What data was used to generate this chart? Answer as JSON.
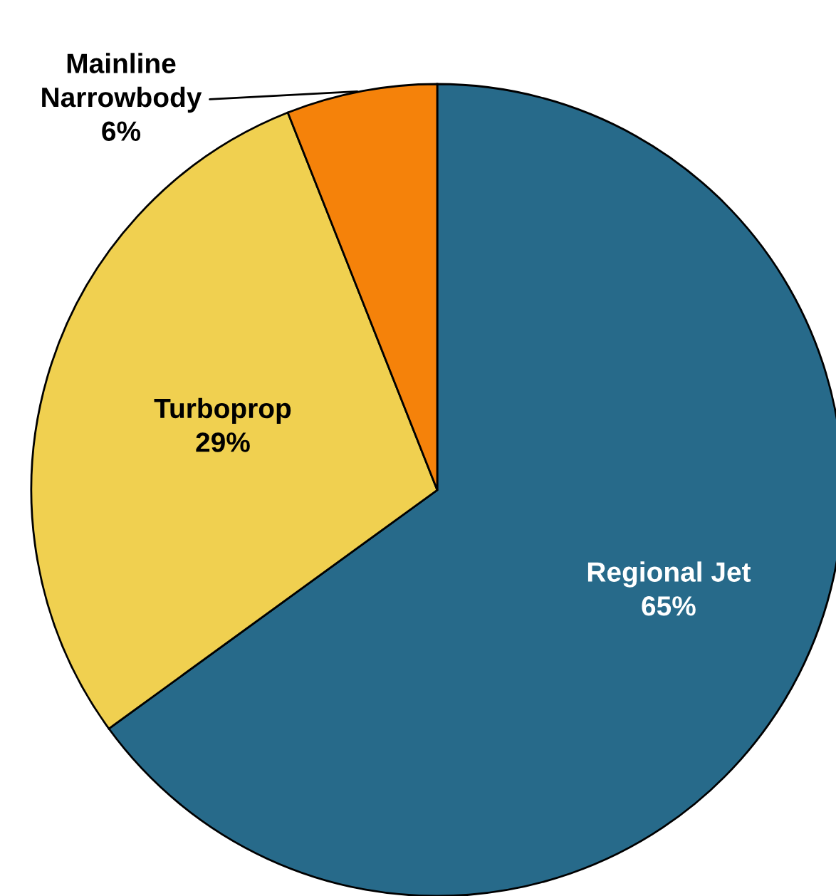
{
  "chart_data": {
    "type": "pie",
    "categories": [
      "Regional Jet",
      "Turboprop",
      "Mainline Narrowbody"
    ],
    "values": [
      65,
      29,
      6
    ],
    "colors": [
      "#276a8a",
      "#f0d050",
      "#f5820a"
    ],
    "value_labels": [
      "65%",
      "29%",
      "6%"
    ]
  }
}
